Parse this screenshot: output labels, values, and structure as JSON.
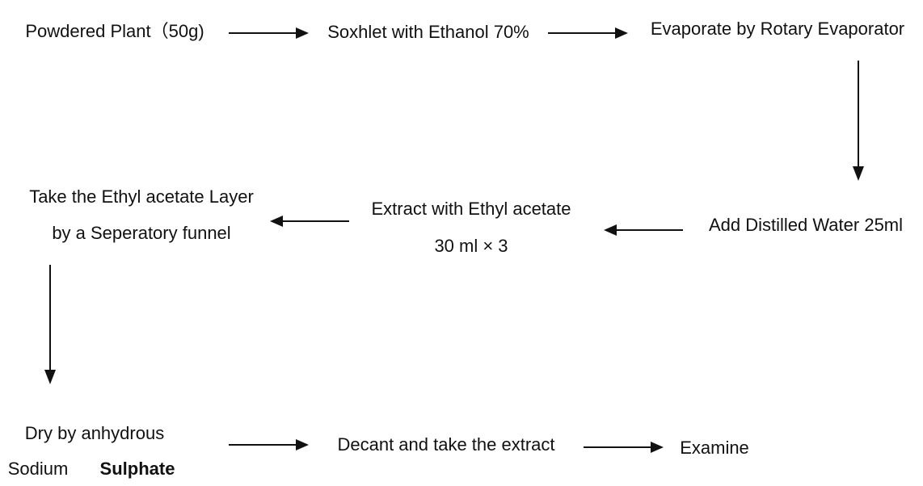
{
  "nodes": [
    {
      "lines": [
        "Powdered Plant（50g)"
      ]
    },
    {
      "lines": [
        "Soxhlet with Ethanol 70%"
      ]
    },
    {
      "lines": [
        "Evaporate by Rotary Evaporator"
      ]
    },
    {
      "lines": [
        "Add Distilled Water 25ml"
      ]
    },
    {
      "lines": [
        "Extract with Ethyl acetate",
        "30 ml × 3"
      ]
    },
    {
      "lines": [
        "Take the Ethyl acetate Layer",
        "by a Seperatory funnel"
      ]
    },
    {
      "lines": [
        "Dry by anhydrous",
        "Sodium",
        "Sulphate"
      ]
    },
    {
      "lines": [
        "Decant and take the extract"
      ]
    },
    {
      "lines": [
        "Examine"
      ]
    }
  ]
}
